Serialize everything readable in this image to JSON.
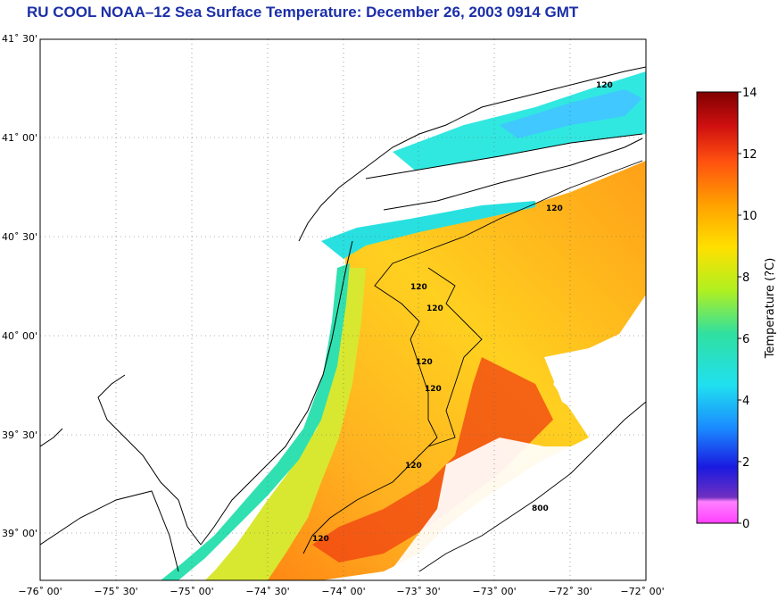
{
  "title": "RU COOL  NOAA–12  Sea Surface Temperature:  December 26, 2003 0914 GMT",
  "lat_ticks": [
    "41˚ 30'",
    "41˚ 00'",
    "40˚ 30'",
    "40˚ 00'",
    "39˚ 30'",
    "39˚ 00'"
  ],
  "lon_ticks": [
    "−76˚ 00'",
    "−75˚ 30'",
    "−75˚ 00'",
    "−74˚ 30'",
    "−74˚ 00'",
    "−73˚ 30'",
    "−73˚ 00'",
    "−72˚ 30'",
    "−72˚ 00'"
  ],
  "colorbar": {
    "label": "Temperature (?C)",
    "ticks": [
      "0",
      "2",
      "4",
      "6",
      "8",
      "10",
      "12",
      "14"
    ]
  },
  "contours": {
    "label_120": "120",
    "label_800": "800"
  }
}
